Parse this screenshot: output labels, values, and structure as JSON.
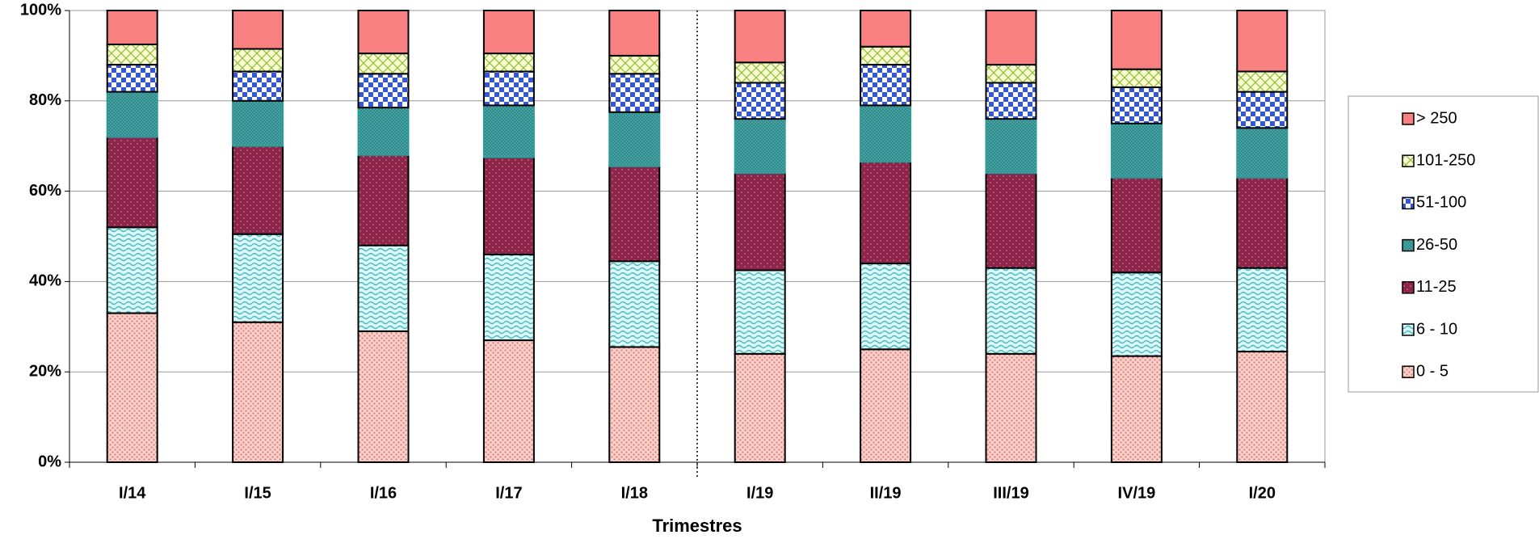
{
  "chart_data": {
    "type": "stacked-bar-100",
    "x_label": "Trimestres",
    "categories": [
      "I/14",
      "I/15",
      "I/16",
      "I/17",
      "I/18",
      "I/19",
      "II/19",
      "III/19",
      "IV/19",
      "I/20"
    ],
    "series": [
      {
        "name": "0 - 5",
        "color": "#f8d0cc",
        "values": [
          33,
          31,
          29,
          27,
          25.5,
          24,
          25,
          24,
          23.5,
          24.5
        ]
      },
      {
        "name": "6 - 10",
        "color": "#dff6f6",
        "values": [
          19,
          19.5,
          19,
          19,
          19,
          18.5,
          19,
          19,
          18.5,
          18.5
        ]
      },
      {
        "name": "11-25",
        "color": "#8e2450",
        "values": [
          20,
          19.5,
          20,
          21.5,
          21,
          21.5,
          22.5,
          21,
          21,
          20
        ]
      },
      {
        "name": "26-50",
        "color": "#2e8b8b",
        "values": [
          10,
          10,
          10.5,
          11.5,
          12,
          12,
          12.5,
          12,
          12,
          11
        ]
      },
      {
        "name": "51-100",
        "color": "#3558d0",
        "values": [
          6,
          6.5,
          7.5,
          7.5,
          8.5,
          8,
          9,
          8,
          8,
          8
        ]
      },
      {
        "name": "101-250",
        "color": "#fafad0",
        "values": [
          4.5,
          5,
          4.5,
          4,
          4,
          4.5,
          4,
          4,
          4,
          4.5
        ]
      },
      {
        "name": "> 250",
        "color": "#f88080",
        "values": [
          7.5,
          8.5,
          9.5,
          9.5,
          10,
          11.5,
          8,
          12,
          13,
          13.5
        ]
      }
    ],
    "ylim": [
      0,
      100
    ],
    "yticks": [
      {
        "value": 0,
        "label": "0%"
      },
      {
        "value": 20,
        "label": "20%"
      },
      {
        "value": 40,
        "label": "40%"
      },
      {
        "value": 60,
        "label": "60%"
      },
      {
        "value": 80,
        "label": "80%"
      },
      {
        "value": 100,
        "label": "100%"
      }
    ],
    "grid": true,
    "legend": "right"
  }
}
